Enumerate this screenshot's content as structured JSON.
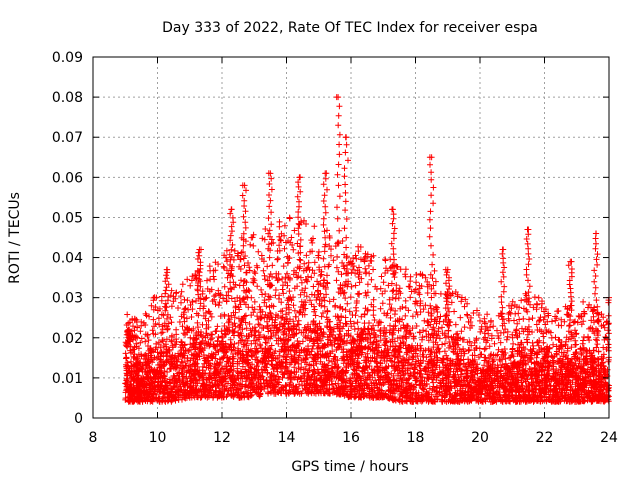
{
  "chart_data": {
    "type": "scatter",
    "title": "Day 333 of 2022, Rate Of TEC Index for receiver espa",
    "xlabel": "GPS time / hours",
    "ylabel": "ROTI / TECUs",
    "xlim": [
      8,
      24
    ],
    "ylim": [
      0,
      0.09
    ],
    "x_ticks": [
      8,
      10,
      12,
      14,
      16,
      18,
      20,
      22,
      24
    ],
    "y_ticks": [
      0,
      0.01,
      0.02,
      0.03,
      0.04,
      0.05,
      0.06,
      0.07,
      0.08,
      0.09
    ],
    "x_tick_labels": [
      "8",
      "10",
      "12",
      "14",
      "16",
      "18",
      "20",
      "22",
      "24"
    ],
    "y_tick_labels": [
      "0",
      "0.01",
      "0.02",
      "0.03",
      "0.04",
      "0.05",
      "0.06",
      "0.07",
      "0.08",
      "0.09"
    ],
    "grid": true,
    "marker": "+",
    "marker_color": "#ff0000",
    "series": [
      {
        "name": "espa",
        "envelope_x": [
          9.0,
          9.5,
          10.0,
          10.5,
          11.0,
          11.5,
          12.0,
          12.5,
          13.0,
          13.5,
          14.0,
          14.5,
          15.0,
          15.5,
          16.0,
          16.5,
          17.0,
          17.5,
          18.0,
          18.5,
          19.0,
          19.5,
          20.0,
          20.5,
          21.0,
          21.5,
          22.0,
          22.5,
          23.0,
          23.5,
          24.0
        ],
        "envelope_low": [
          0.004,
          0.004,
          0.004,
          0.004,
          0.005,
          0.005,
          0.005,
          0.005,
          0.005,
          0.006,
          0.006,
          0.006,
          0.006,
          0.006,
          0.005,
          0.005,
          0.005,
          0.004,
          0.004,
          0.004,
          0.004,
          0.004,
          0.004,
          0.004,
          0.004,
          0.004,
          0.004,
          0.004,
          0.004,
          0.004,
          0.004
        ],
        "envelope_typical_high": [
          0.018,
          0.017,
          0.022,
          0.022,
          0.025,
          0.026,
          0.028,
          0.031,
          0.032,
          0.033,
          0.035,
          0.035,
          0.033,
          0.032,
          0.029,
          0.03,
          0.028,
          0.027,
          0.025,
          0.026,
          0.023,
          0.021,
          0.018,
          0.018,
          0.02,
          0.022,
          0.02,
          0.019,
          0.02,
          0.02,
          0.017
        ],
        "peaks": [
          {
            "x": 9.1,
            "y": 0.022
          },
          {
            "x": 10.3,
            "y": 0.037
          },
          {
            "x": 11.3,
            "y": 0.042
          },
          {
            "x": 12.3,
            "y": 0.052
          },
          {
            "x": 12.7,
            "y": 0.058
          },
          {
            "x": 13.5,
            "y": 0.061
          },
          {
            "x": 14.4,
            "y": 0.06
          },
          {
            "x": 15.2,
            "y": 0.061
          },
          {
            "x": 15.6,
            "y": 0.08
          },
          {
            "x": 15.85,
            "y": 0.07
          },
          {
            "x": 17.3,
            "y": 0.052
          },
          {
            "x": 18.5,
            "y": 0.065
          },
          {
            "x": 19.0,
            "y": 0.037
          },
          {
            "x": 20.7,
            "y": 0.042
          },
          {
            "x": 21.5,
            "y": 0.047
          },
          {
            "x": 22.8,
            "y": 0.039
          },
          {
            "x": 23.6,
            "y": 0.046
          },
          {
            "x": 24.0,
            "y": 0.03
          }
        ]
      }
    ]
  }
}
